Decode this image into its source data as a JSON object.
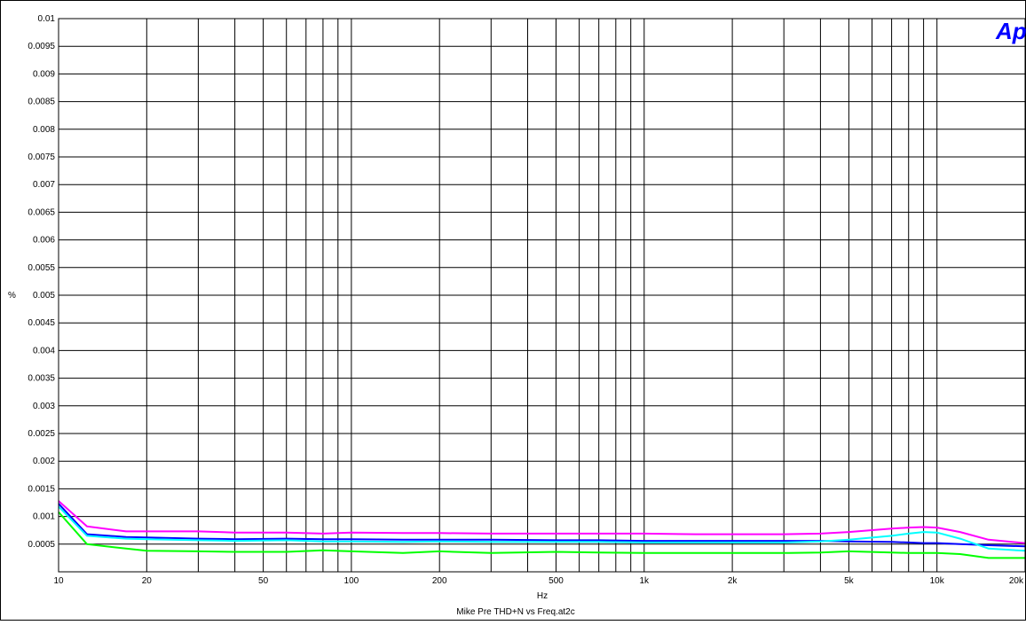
{
  "chart_data": {
    "type": "line",
    "title": "",
    "caption": "Mike Pre THD+N vs Freq.at2c",
    "xlabel": "Hz",
    "ylabel": "%",
    "x_scale": "log",
    "xlim": [
      10,
      20000
    ],
    "ylim": [
      0,
      0.01
    ],
    "grid": true,
    "legend": "none",
    "logo_text": "Ap",
    "x_ticks": [
      {
        "value": 10,
        "label": "10"
      },
      {
        "value": 20,
        "label": "20"
      },
      {
        "value": 50,
        "label": "50"
      },
      {
        "value": 100,
        "label": "100"
      },
      {
        "value": 200,
        "label": "200"
      },
      {
        "value": 500,
        "label": "500"
      },
      {
        "value": 1000,
        "label": "1k"
      },
      {
        "value": 2000,
        "label": "2k"
      },
      {
        "value": 5000,
        "label": "5k"
      },
      {
        "value": 10000,
        "label": "10k"
      },
      {
        "value": 20000,
        "label": "20k"
      }
    ],
    "y_ticks": [
      {
        "value": 0.0005,
        "label": "0.0005"
      },
      {
        "value": 0.001,
        "label": "0.001"
      },
      {
        "value": 0.0015,
        "label": "0.0015"
      },
      {
        "value": 0.002,
        "label": "0.002"
      },
      {
        "value": 0.0025,
        "label": "0.0025"
      },
      {
        "value": 0.003,
        "label": "0.003"
      },
      {
        "value": 0.0035,
        "label": "0.0035"
      },
      {
        "value": 0.004,
        "label": "0.004"
      },
      {
        "value": 0.0045,
        "label": "0.0045"
      },
      {
        "value": 0.005,
        "label": "0.005"
      },
      {
        "value": 0.0055,
        "label": "0.0055"
      },
      {
        "value": 0.006,
        "label": "0.006"
      },
      {
        "value": 0.0065,
        "label": "0.0065"
      },
      {
        "value": 0.007,
        "label": "0.007"
      },
      {
        "value": 0.0075,
        "label": "0.0075"
      },
      {
        "value": 0.008,
        "label": "0.008"
      },
      {
        "value": 0.0085,
        "label": "0.0085"
      },
      {
        "value": 0.009,
        "label": "0.009"
      },
      {
        "value": 0.0095,
        "label": "0.0095"
      },
      {
        "value": 0.01,
        "label": "0.01"
      }
    ],
    "x_minor_gridlines": [
      30,
      40,
      60,
      70,
      80,
      90,
      300,
      400,
      600,
      700,
      800,
      900,
      3000,
      4000,
      6000,
      7000,
      8000,
      9000
    ],
    "series": [
      {
        "color": "#ff00ff",
        "x": [
          10,
          12.5,
          17,
          20,
          30,
          40,
          60,
          80,
          100,
          150,
          200,
          300,
          500,
          700,
          1000,
          1500,
          2000,
          3000,
          4000,
          5000,
          7000,
          8000,
          9000,
          10000,
          12000,
          15000,
          20000
        ],
        "values": [
          0.00128,
          0.00082,
          0.00073,
          0.00073,
          0.00073,
          0.00071,
          0.00071,
          0.00069,
          0.00071,
          0.0007,
          0.0007,
          0.00069,
          0.00069,
          0.00069,
          0.00069,
          0.00068,
          0.00068,
          0.00068,
          0.00069,
          0.00072,
          0.00078,
          0.0008,
          0.00081,
          0.0008,
          0.00072,
          0.00058,
          0.00052
        ]
      },
      {
        "color": "#0000ff",
        "x": [
          10,
          12.5,
          17,
          20,
          30,
          40,
          60,
          80,
          100,
          150,
          200,
          300,
          500,
          700,
          1000,
          1500,
          2000,
          3000,
          4000,
          5000,
          7000,
          8000,
          9000,
          10000,
          12000,
          15000,
          20000
        ],
        "values": [
          0.00123,
          0.00068,
          0.00063,
          0.00062,
          0.0006,
          0.00059,
          0.0006,
          0.00059,
          0.00059,
          0.00058,
          0.00058,
          0.00058,
          0.00057,
          0.00057,
          0.00056,
          0.00056,
          0.00056,
          0.00056,
          0.00056,
          0.00055,
          0.00054,
          0.00053,
          0.00052,
          0.00052,
          0.0005,
          0.00048,
          0.00046
        ]
      },
      {
        "color": "#00ffff",
        "x": [
          10,
          12.5,
          17,
          20,
          30,
          40,
          60,
          80,
          100,
          150,
          200,
          300,
          500,
          700,
          1000,
          1500,
          2000,
          3000,
          4000,
          5000,
          7000,
          8000,
          9000,
          10000,
          12000,
          15000,
          20000
        ],
        "values": [
          0.00118,
          0.00065,
          0.0006,
          0.00059,
          0.00057,
          0.00056,
          0.00057,
          0.00055,
          0.00055,
          0.00054,
          0.00055,
          0.00054,
          0.00054,
          0.00054,
          0.00053,
          0.00053,
          0.00053,
          0.00053,
          0.00055,
          0.00058,
          0.00065,
          0.00069,
          0.00072,
          0.00071,
          0.0006,
          0.00042,
          0.00038
        ]
      },
      {
        "color": "#00ff00",
        "x": [
          10,
          12.5,
          17,
          20,
          30,
          40,
          60,
          80,
          100,
          150,
          200,
          300,
          500,
          700,
          1000,
          1500,
          2000,
          3000,
          4000,
          5000,
          7000,
          8000,
          9000,
          10000,
          12000,
          15000,
          20000
        ],
        "values": [
          0.00108,
          0.0005,
          0.00042,
          0.00038,
          0.00037,
          0.00036,
          0.00036,
          0.00039,
          0.00037,
          0.00034,
          0.00037,
          0.00034,
          0.00036,
          0.00035,
          0.00034,
          0.00034,
          0.00034,
          0.00034,
          0.00035,
          0.00037,
          0.00035,
          0.00034,
          0.00034,
          0.00034,
          0.00032,
          0.00025,
          0.00025
        ]
      }
    ]
  }
}
